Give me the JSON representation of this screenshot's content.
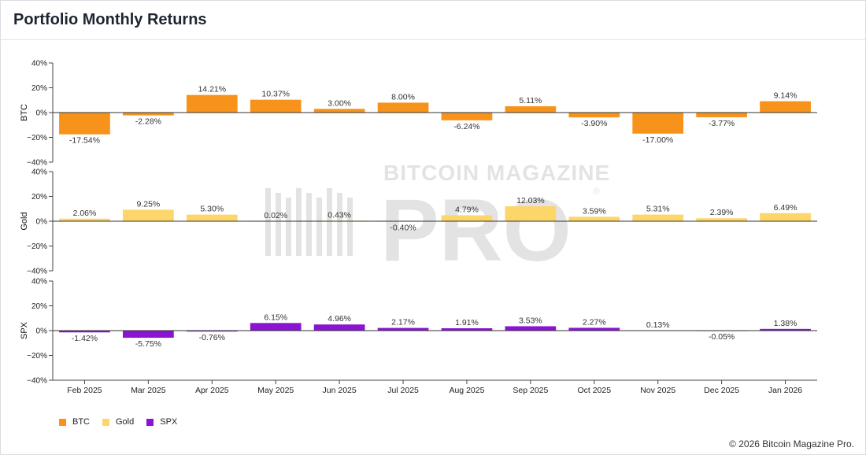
{
  "page": {
    "title": "Portfolio Monthly Returns",
    "copyright": "© 2026 Bitcoin Magazine Pro."
  },
  "watermark": {
    "brand_top": "BITCOIN MAGAZINE",
    "brand_main": "PRO",
    "registered": "®"
  },
  "colors": {
    "BTC": "#f7931a",
    "Gold": "#fdd66a",
    "SPX": "#8a14d2",
    "baseline": "#333333",
    "axis": "#444444"
  },
  "legend": [
    {
      "name": "BTC",
      "color": "#f7931a"
    },
    {
      "name": "Gold",
      "color": "#fdd66a"
    },
    {
      "name": "SPX",
      "color": "#8a14d2"
    }
  ],
  "chart_data": {
    "type": "bar",
    "categories": [
      "Feb 2025",
      "Mar 2025",
      "Apr 2025",
      "May 2025",
      "Jun 2025",
      "Jul 2025",
      "Aug 2025",
      "Sep 2025",
      "Oct 2025",
      "Nov 2025",
      "Dec 2025",
      "Jan 2026"
    ],
    "ylim": [
      -40,
      40
    ],
    "yticks": [
      -40,
      -20,
      0,
      20,
      40
    ],
    "ytick_labels": [
      "−40%",
      "−20%",
      "0%",
      "20%",
      "40%"
    ],
    "series": [
      {
        "name": "BTC",
        "values": [
          -17.54,
          -2.28,
          14.21,
          10.37,
          3.0,
          8.0,
          -6.24,
          5.11,
          -3.9,
          -17.0,
          -3.77,
          9.14
        ],
        "labels": [
          "-17.54%",
          "-2.28%",
          "14.21%",
          "10.37%",
          "3.00%",
          "8.00%",
          "-6.24%",
          "5.11%",
          "-3.90%",
          "-17.00%",
          "-3.77%",
          "9.14%"
        ]
      },
      {
        "name": "Gold",
        "values": [
          2.06,
          9.25,
          5.3,
          0.02,
          0.43,
          -0.4,
          4.79,
          12.03,
          3.59,
          5.31,
          2.39,
          6.49
        ],
        "labels": [
          "2.06%",
          "9.25%",
          "5.30%",
          "0.02%",
          "0.43%",
          "-0.40%",
          "4.79%",
          "12.03%",
          "3.59%",
          "5.31%",
          "2.39%",
          "6.49%"
        ]
      },
      {
        "name": "SPX",
        "values": [
          -1.42,
          -5.75,
          -0.76,
          6.15,
          4.96,
          2.17,
          1.91,
          3.53,
          2.27,
          0.13,
          -0.05,
          1.38
        ],
        "labels": [
          "-1.42%",
          "-5.75%",
          "-0.76%",
          "6.15%",
          "4.96%",
          "2.17%",
          "1.91%",
          "3.53%",
          "2.27%",
          "0.13%",
          "-0.05%",
          "1.38%"
        ]
      }
    ],
    "grid": false,
    "legend_position": "bottom-left"
  }
}
